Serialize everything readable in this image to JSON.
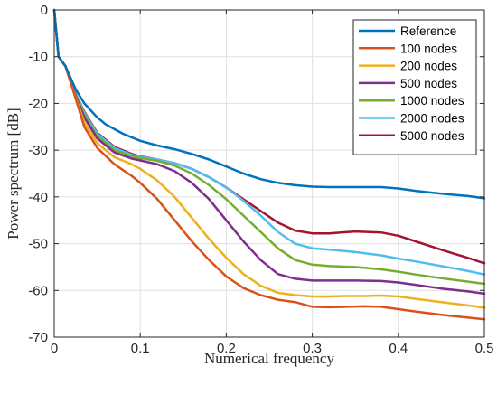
{
  "chart_data": {
    "type": "line",
    "xlabel": "Numerical frequency",
    "ylabel": "Power spectrum [dB]",
    "xlim": [
      0,
      0.5
    ],
    "ylim": [
      -70,
      0
    ],
    "xticks": [
      0,
      0.1,
      0.2,
      0.3,
      0.4,
      0.5
    ],
    "xtick_labels": [
      "0",
      "0.1",
      "0.2",
      "0.3",
      "0.4",
      "0.5"
    ],
    "yticks": [
      0,
      -10,
      -20,
      -30,
      -40,
      -50,
      -60,
      -70
    ],
    "ytick_labels": [
      "0",
      "-10",
      "-20",
      "-30",
      "-40",
      "-50",
      "-60",
      "-70"
    ],
    "grid": true,
    "legend_position": "top-right",
    "series": [
      {
        "name": "Reference",
        "color": "#0072BD",
        "points": [
          [
            0,
            0
          ],
          [
            0.005,
            -10
          ],
          [
            0.013,
            -12
          ],
          [
            0.025,
            -17
          ],
          [
            0.035,
            -20
          ],
          [
            0.05,
            -23
          ],
          [
            0.06,
            -24.5
          ],
          [
            0.08,
            -26.5
          ],
          [
            0.1,
            -28
          ],
          [
            0.12,
            -29
          ],
          [
            0.14,
            -29.8
          ],
          [
            0.16,
            -30.8
          ],
          [
            0.18,
            -32
          ],
          [
            0.2,
            -33.5
          ],
          [
            0.22,
            -35
          ],
          [
            0.24,
            -36.2
          ],
          [
            0.26,
            -37
          ],
          [
            0.28,
            -37.5
          ],
          [
            0.3,
            -37.8
          ],
          [
            0.32,
            -37.9
          ],
          [
            0.35,
            -37.9
          ],
          [
            0.38,
            -37.9
          ],
          [
            0.4,
            -38.2
          ],
          [
            0.42,
            -38.7
          ],
          [
            0.45,
            -39.3
          ],
          [
            0.48,
            -39.8
          ],
          [
            0.5,
            -40.3
          ]
        ]
      },
      {
        "name": "100 nodes",
        "color": "#D95319",
        "points": [
          [
            0,
            0
          ],
          [
            0.005,
            -10
          ],
          [
            0.013,
            -12
          ],
          [
            0.025,
            -19
          ],
          [
            0.035,
            -25
          ],
          [
            0.05,
            -29.5
          ],
          [
            0.07,
            -33
          ],
          [
            0.09,
            -35.5
          ],
          [
            0.1,
            -37
          ],
          [
            0.12,
            -40.5
          ],
          [
            0.14,
            -45
          ],
          [
            0.16,
            -49.5
          ],
          [
            0.18,
            -53.5
          ],
          [
            0.2,
            -57
          ],
          [
            0.22,
            -59.5
          ],
          [
            0.24,
            -61
          ],
          [
            0.26,
            -62
          ],
          [
            0.28,
            -62.5
          ],
          [
            0.3,
            -63.5
          ],
          [
            0.32,
            -63.6
          ],
          [
            0.34,
            -63.5
          ],
          [
            0.36,
            -63.4
          ],
          [
            0.38,
            -63.5
          ],
          [
            0.4,
            -64
          ],
          [
            0.42,
            -64.5
          ],
          [
            0.45,
            -65.2
          ],
          [
            0.48,
            -65.8
          ],
          [
            0.5,
            -66.2
          ]
        ]
      },
      {
        "name": "200 nodes",
        "color": "#EDB120",
        "points": [
          [
            0,
            0
          ],
          [
            0.005,
            -10
          ],
          [
            0.013,
            -12
          ],
          [
            0.025,
            -18.8
          ],
          [
            0.035,
            -24
          ],
          [
            0.05,
            -28.5
          ],
          [
            0.07,
            -31.5
          ],
          [
            0.09,
            -33
          ],
          [
            0.1,
            -34
          ],
          [
            0.12,
            -36.5
          ],
          [
            0.14,
            -40
          ],
          [
            0.16,
            -44.5
          ],
          [
            0.18,
            -49
          ],
          [
            0.2,
            -53
          ],
          [
            0.22,
            -56.5
          ],
          [
            0.24,
            -59
          ],
          [
            0.26,
            -60.5
          ],
          [
            0.28,
            -61
          ],
          [
            0.3,
            -61.3
          ],
          [
            0.32,
            -61.3
          ],
          [
            0.34,
            -61.2
          ],
          [
            0.36,
            -61.2
          ],
          [
            0.38,
            -61.1
          ],
          [
            0.4,
            -61.3
          ],
          [
            0.42,
            -61.8
          ],
          [
            0.45,
            -62.5
          ],
          [
            0.48,
            -63.2
          ],
          [
            0.5,
            -63.7
          ]
        ]
      },
      {
        "name": "500 nodes",
        "color": "#7E2F8E",
        "points": [
          [
            0,
            0
          ],
          [
            0.005,
            -10
          ],
          [
            0.013,
            -12
          ],
          [
            0.025,
            -18.5
          ],
          [
            0.035,
            -23
          ],
          [
            0.05,
            -27.5
          ],
          [
            0.07,
            -30.5
          ],
          [
            0.09,
            -31.8
          ],
          [
            0.1,
            -32.2
          ],
          [
            0.12,
            -33
          ],
          [
            0.14,
            -34.5
          ],
          [
            0.16,
            -37
          ],
          [
            0.18,
            -40.5
          ],
          [
            0.2,
            -45
          ],
          [
            0.22,
            -49.5
          ],
          [
            0.24,
            -53.5
          ],
          [
            0.26,
            -56.5
          ],
          [
            0.28,
            -57.5
          ],
          [
            0.3,
            -57.9
          ],
          [
            0.32,
            -57.9
          ],
          [
            0.35,
            -57.9
          ],
          [
            0.38,
            -58
          ],
          [
            0.4,
            -58.3
          ],
          [
            0.42,
            -58.8
          ],
          [
            0.45,
            -59.6
          ],
          [
            0.48,
            -60.2
          ],
          [
            0.5,
            -60.7
          ]
        ]
      },
      {
        "name": "1000 nodes",
        "color": "#77AC30",
        "points": [
          [
            0,
            0
          ],
          [
            0.005,
            -10
          ],
          [
            0.013,
            -12
          ],
          [
            0.025,
            -18.2
          ],
          [
            0.035,
            -22.5
          ],
          [
            0.05,
            -27
          ],
          [
            0.07,
            -30
          ],
          [
            0.09,
            -31.3
          ],
          [
            0.1,
            -31.7
          ],
          [
            0.12,
            -32.3
          ],
          [
            0.14,
            -33.3
          ],
          [
            0.16,
            -35
          ],
          [
            0.18,
            -37.5
          ],
          [
            0.2,
            -40.5
          ],
          [
            0.22,
            -44
          ],
          [
            0.24,
            -47.5
          ],
          [
            0.26,
            -51
          ],
          [
            0.28,
            -53.5
          ],
          [
            0.3,
            -54.5
          ],
          [
            0.32,
            -54.8
          ],
          [
            0.35,
            -55
          ],
          [
            0.38,
            -55.5
          ],
          [
            0.4,
            -56
          ],
          [
            0.42,
            -56.6
          ],
          [
            0.45,
            -57.4
          ],
          [
            0.48,
            -58.1
          ],
          [
            0.5,
            -58.6
          ]
        ]
      },
      {
        "name": "2000 nodes",
        "color": "#4DBEEE",
        "points": [
          [
            0,
            0
          ],
          [
            0.005,
            -10
          ],
          [
            0.013,
            -12
          ],
          [
            0.025,
            -18
          ],
          [
            0.035,
            -22
          ],
          [
            0.05,
            -26.5
          ],
          [
            0.07,
            -29.5
          ],
          [
            0.09,
            -31
          ],
          [
            0.1,
            -31.4
          ],
          [
            0.12,
            -32
          ],
          [
            0.14,
            -32.8
          ],
          [
            0.16,
            -34
          ],
          [
            0.18,
            -35.8
          ],
          [
            0.2,
            -38
          ],
          [
            0.22,
            -40.8
          ],
          [
            0.24,
            -44
          ],
          [
            0.26,
            -47.5
          ],
          [
            0.28,
            -50
          ],
          [
            0.3,
            -51
          ],
          [
            0.32,
            -51.3
          ],
          [
            0.35,
            -51.8
          ],
          [
            0.38,
            -52.5
          ],
          [
            0.4,
            -53.2
          ],
          [
            0.42,
            -53.8
          ],
          [
            0.45,
            -54.8
          ],
          [
            0.48,
            -55.8
          ],
          [
            0.5,
            -56.6
          ]
        ]
      },
      {
        "name": "5000 nodes",
        "color": "#A2142F",
        "points": [
          [
            0,
            0
          ],
          [
            0.005,
            -10
          ],
          [
            0.013,
            -12
          ],
          [
            0.025,
            -18
          ],
          [
            0.035,
            -21.8
          ],
          [
            0.05,
            -26.3
          ],
          [
            0.07,
            -29.3
          ],
          [
            0.09,
            -30.8
          ],
          [
            0.1,
            -31.3
          ],
          [
            0.12,
            -32
          ],
          [
            0.14,
            -32.8
          ],
          [
            0.16,
            -34
          ],
          [
            0.18,
            -35.8
          ],
          [
            0.2,
            -38
          ],
          [
            0.22,
            -40.5
          ],
          [
            0.24,
            -43
          ],
          [
            0.26,
            -45.5
          ],
          [
            0.28,
            -47.2
          ],
          [
            0.3,
            -47.8
          ],
          [
            0.32,
            -47.8
          ],
          [
            0.35,
            -47.4
          ],
          [
            0.38,
            -47.6
          ],
          [
            0.4,
            -48.3
          ],
          [
            0.42,
            -49.5
          ],
          [
            0.45,
            -51.3
          ],
          [
            0.48,
            -53
          ],
          [
            0.5,
            -54.2
          ]
        ]
      }
    ]
  }
}
